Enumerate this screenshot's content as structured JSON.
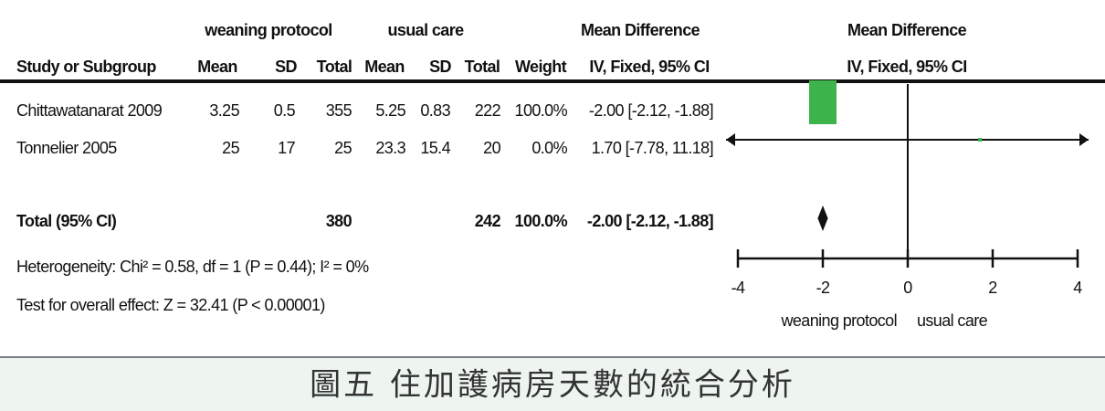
{
  "caption": "圖五 住加護病房天數的統合分析",
  "chart_data": {
    "type": "forest",
    "group_headers": [
      "weaning protocol",
      "usual care",
      "Mean Difference",
      "Mean Difference"
    ],
    "columns": [
      "Study or Subgroup",
      "Mean",
      "SD",
      "Total",
      "Mean",
      "SD",
      "Total",
      "Weight",
      "IV, Fixed, 95% CI",
      "IV, Fixed, 95% CI"
    ],
    "rows": [
      {
        "study": "Chittawatanarat 2009",
        "exp_mean": 3.25,
        "exp_sd": 0.5,
        "exp_total": 355,
        "ctl_mean": 5.25,
        "ctl_sd": 0.83,
        "ctl_total": 222,
        "weight": 100,
        "weight_label": "100.0%",
        "estimate": -2,
        "ci": [
          -2.12,
          -1.88
        ],
        "ci_label": "-2.00 [-2.12, -1.88]"
      },
      {
        "study": "Tonnelier 2005",
        "exp_mean": 25,
        "exp_sd": 17,
        "exp_total": 25,
        "ctl_mean": 23.3,
        "ctl_sd": 15.4,
        "ctl_total": 20,
        "weight": 0,
        "weight_label": "0.0%",
        "estimate": 1.7,
        "ci": [
          -7.78,
          11.18
        ],
        "ci_label": "1.70 [-7.78, 11.18]"
      }
    ],
    "total": {
      "study": "Total (95% CI)",
      "exp_total": 380,
      "ctl_total": 242,
      "weight": 100,
      "weight_label": "100.0%",
      "estimate": -2,
      "ci": [
        -2.12,
        -1.88
      ],
      "ci_label": "-2.00 [-2.12, -1.88]"
    },
    "heterogeneity": "Heterogeneity: Chi² = 0.58, df = 1 (P = 0.44); I² = 0%",
    "overall_effect": "Test for overall effect: Z = 32.41 (P < 0.00001)",
    "xlim": [
      -4,
      4
    ],
    "xticks": [
      -4,
      -2,
      0,
      2,
      4
    ],
    "favours": [
      "weaning protocol",
      "usual care"
    ],
    "color": "#3cb44b"
  }
}
